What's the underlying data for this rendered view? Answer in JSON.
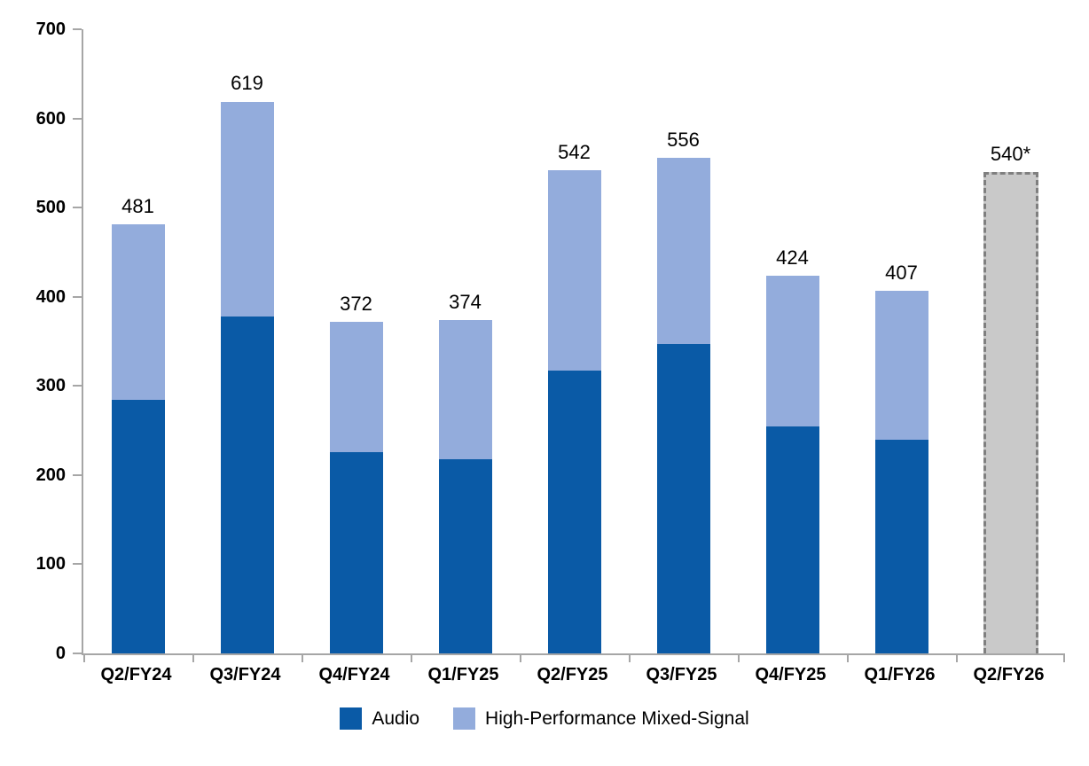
{
  "chart_data": {
    "type": "bar",
    "stacked": true,
    "title": "",
    "xlabel": "",
    "ylabel": "",
    "ylim": [
      0,
      700
    ],
    "ytick_step": 100,
    "grid": false,
    "legend_position": "bottom",
    "categories": [
      "Q2/FY24",
      "Q3/FY24",
      "Q4/FY24",
      "Q1/FY25",
      "Q2/FY25",
      "Q3/FY25",
      "Q4/FY25",
      "Q1/FY26",
      "Q2/FY26"
    ],
    "series": [
      {
        "name": "Audio",
        "color": "#0a5aa6",
        "values": [
          284,
          378,
          226,
          218,
          317,
          347,
          255,
          240,
          null
        ]
      },
      {
        "name": "High-Performance Mixed-Signal",
        "color": "#93acdc",
        "values": [
          197,
          241,
          146,
          156,
          225,
          209,
          169,
          167,
          null
        ]
      }
    ],
    "totals": [
      481,
      619,
      372,
      374,
      542,
      556,
      424,
      407,
      540
    ],
    "total_labels": [
      "481",
      "619",
      "372",
      "374",
      "542",
      "556",
      "424",
      "407",
      "540*"
    ],
    "forecast": {
      "category": "Q2/FY26",
      "total": 540,
      "label": "540*",
      "fill_color": "#c9c9c9",
      "border_color": "#7f7f7f",
      "border_style": "dashed"
    }
  },
  "colors": {
    "axis": "#a6a6a6",
    "text": "#000000",
    "background": "#ffffff"
  }
}
